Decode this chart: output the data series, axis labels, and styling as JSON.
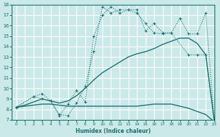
{
  "xlabel": "Humidex (Indice chaleur)",
  "xlim": [
    -0.5,
    23
  ],
  "ylim": [
    7,
    18
  ],
  "xticks": [
    0,
    1,
    2,
    3,
    4,
    5,
    6,
    7,
    8,
    9,
    10,
    11,
    12,
    13,
    14,
    15,
    16,
    17,
    18,
    19,
    20,
    21,
    22,
    23
  ],
  "yticks": [
    7,
    8,
    9,
    10,
    11,
    12,
    13,
    14,
    15,
    16,
    17,
    18
  ],
  "background_color": "#cce9e9",
  "grid_color": "#ffffff",
  "line_color": "#1a6e6e",
  "line1": {
    "x": [
      0,
      1,
      2,
      3,
      4,
      5,
      6,
      7,
      8,
      9,
      10,
      11,
      12,
      13,
      14,
      15,
      16,
      17,
      18,
      19,
      20,
      21,
      22,
      23
    ],
    "y": [
      8.2,
      8.3,
      8.4,
      8.5,
      8.5,
      8.4,
      8.3,
      8.3,
      8.3,
      8.3,
      8.3,
      8.3,
      8.3,
      8.3,
      8.3,
      8.4,
      8.5,
      8.5,
      8.5,
      8.3,
      8.1,
      7.8,
      7.5,
      6.8
    ]
  },
  "line2": {
    "x": [
      0,
      1,
      2,
      3,
      4,
      5,
      6,
      7,
      8,
      9,
      10,
      11,
      12,
      13,
      14,
      15,
      16,
      17,
      18,
      19,
      20,
      21,
      22,
      23
    ],
    "y": [
      8.2,
      8.4,
      8.7,
      9.0,
      8.8,
      8.6,
      8.8,
      9.3,
      10.0,
      10.8,
      11.5,
      12.0,
      12.5,
      13.0,
      13.3,
      13.5,
      13.8,
      14.2,
      14.5,
      14.8,
      14.8,
      14.3,
      13.2,
      6.8
    ]
  },
  "line3": {
    "x": [
      0,
      2,
      3,
      4,
      5,
      6,
      7,
      8,
      9,
      10,
      11,
      12,
      13,
      14,
      15,
      16,
      17,
      18,
      19,
      20,
      21,
      22,
      23
    ],
    "y": [
      8.2,
      9.2,
      9.5,
      8.8,
      7.5,
      7.4,
      8.6,
      10.2,
      13.5,
      17.8,
      17.2,
      17.5,
      17.5,
      17.2,
      16.2,
      15.3,
      15.2,
      15.3,
      16.7,
      15.2,
      15.2,
      17.2,
      6.8
    ]
  },
  "line4": {
    "x": [
      0,
      2,
      3,
      4,
      5,
      6,
      7,
      8,
      9,
      10,
      11,
      12,
      13,
      14,
      15,
      16,
      17,
      18,
      20,
      21,
      22,
      23
    ],
    "y": [
      8.2,
      9.2,
      9.0,
      8.8,
      7.4,
      8.5,
      9.8,
      8.7,
      15.0,
      17.0,
      17.8,
      17.2,
      17.5,
      17.5,
      15.5,
      16.2,
      15.3,
      15.3,
      13.2,
      13.2,
      13.2,
      6.8
    ]
  }
}
